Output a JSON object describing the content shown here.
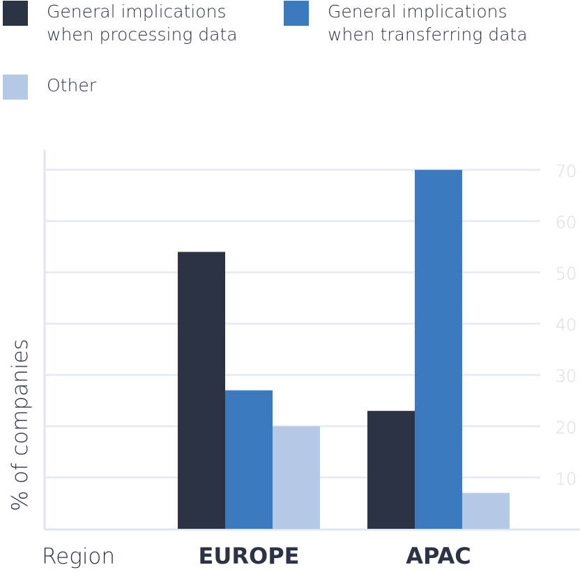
{
  "chart_data": {
    "type": "bar",
    "title": "",
    "xlabel": "Region",
    "ylabel": "% of companies",
    "ylim": [
      0,
      70
    ],
    "yticks": [
      10,
      20,
      30,
      40,
      50,
      60,
      70
    ],
    "grid": true,
    "legend_position": "top-left",
    "categories": [
      "EUROPE",
      "APAC"
    ],
    "series": [
      {
        "name": "General implications when processing data",
        "label_lines": [
          "General implications",
          "when processing data"
        ],
        "color": "#2b3344",
        "values": [
          54,
          23
        ]
      },
      {
        "name": "General implications when transferring data",
        "label_lines": [
          "General implications",
          "when transferring data"
        ],
        "color": "#3b7abf",
        "values": [
          27,
          70
        ]
      },
      {
        "name": "Other",
        "label_lines": [
          "Other"
        ],
        "color": "#b3c9e6",
        "values": [
          20,
          7
        ]
      }
    ]
  }
}
